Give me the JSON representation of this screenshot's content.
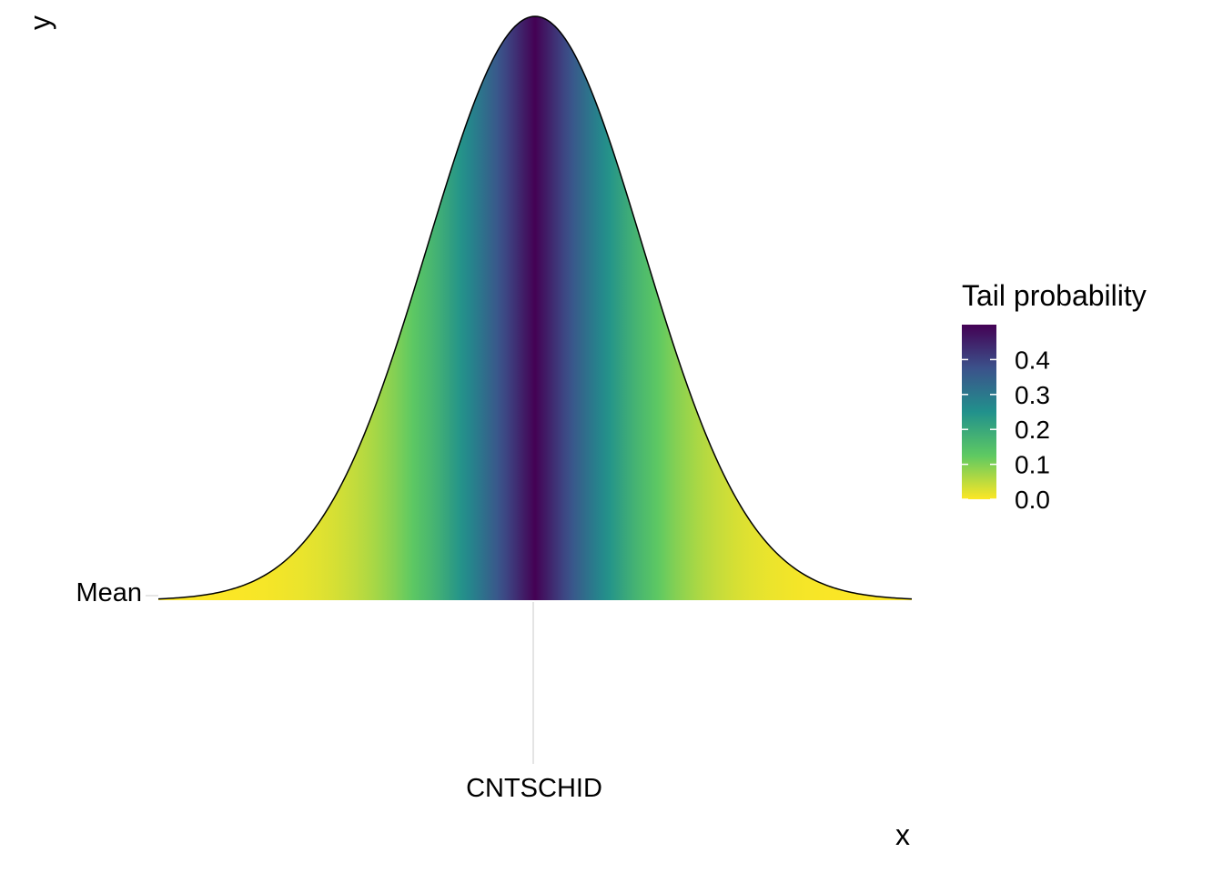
{
  "chart_data": {
    "type": "area",
    "description_free": true,
    "xlabel": "x",
    "ylabel": "y",
    "x_tick_labels": [
      "CNTSCHID"
    ],
    "y_tick_labels": [
      "Mean"
    ],
    "curve": "normal density",
    "x_range_sd": [
      -3.5,
      3.5
    ],
    "fill_variable": "tail probability",
    "legend": {
      "title": "Tail probability",
      "placement": "right",
      "ticks": [
        "0.4",
        "0.3",
        "0.2",
        "0.1",
        "0.0"
      ],
      "tick_values": [
        0.4,
        0.3,
        0.2,
        0.1,
        0.0
      ],
      "range": [
        0.0,
        0.5
      ],
      "palette": [
        "#fde725",
        "#5ec962",
        "#21918c",
        "#3b528b",
        "#440154"
      ]
    },
    "outline_color": "#000000",
    "grid": "minimal"
  }
}
